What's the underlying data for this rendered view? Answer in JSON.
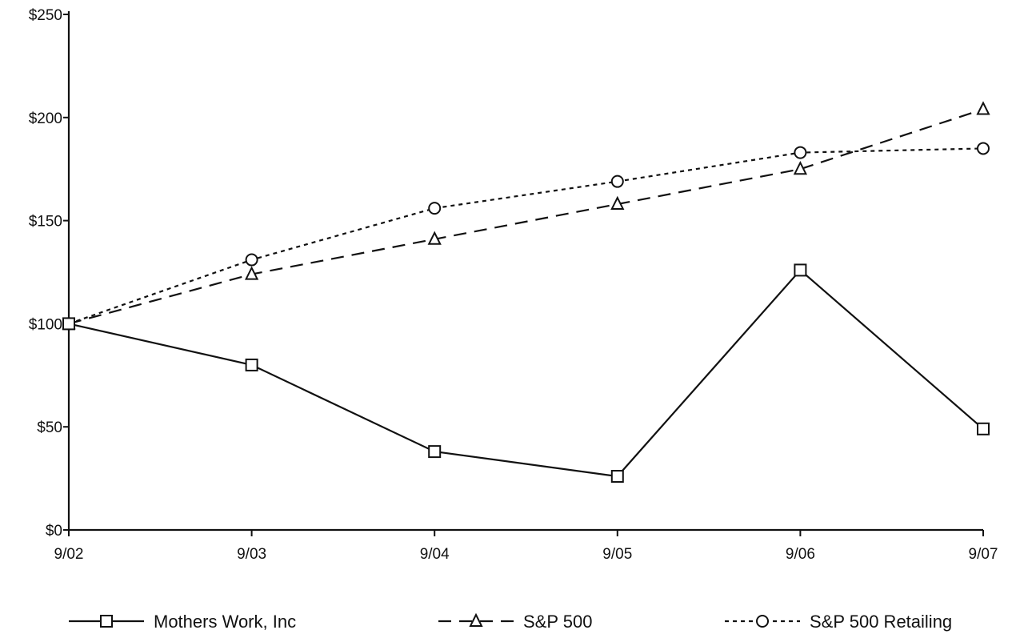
{
  "chart_data": {
    "type": "line",
    "title": "",
    "xlabel": "",
    "ylabel": "",
    "categories": [
      "9/02",
      "9/03",
      "9/04",
      "9/05",
      "9/06",
      "9/07"
    ],
    "y_ticks": [
      "$0",
      "$50",
      "$100",
      "$150",
      "$200",
      "$250"
    ],
    "y_tick_values": [
      0,
      50,
      100,
      150,
      200,
      250
    ],
    "ylim": [
      0,
      250
    ],
    "grid": false,
    "legend_position": "bottom",
    "series": [
      {
        "name": "Mothers Work, Inc",
        "values": [
          100,
          80,
          38,
          26,
          126,
          49
        ],
        "line_style": "solid",
        "marker": "square",
        "color": "#111111"
      },
      {
        "name": "S&P 500",
        "values": [
          100,
          124,
          141,
          158,
          175,
          204
        ],
        "line_style": "dashed",
        "marker": "triangle",
        "color": "#111111"
      },
      {
        "name": "S&P 500 Retailing",
        "values": [
          100,
          131,
          156,
          169,
          183,
          185
        ],
        "line_style": "dotted",
        "marker": "circle",
        "color": "#111111"
      }
    ]
  }
}
